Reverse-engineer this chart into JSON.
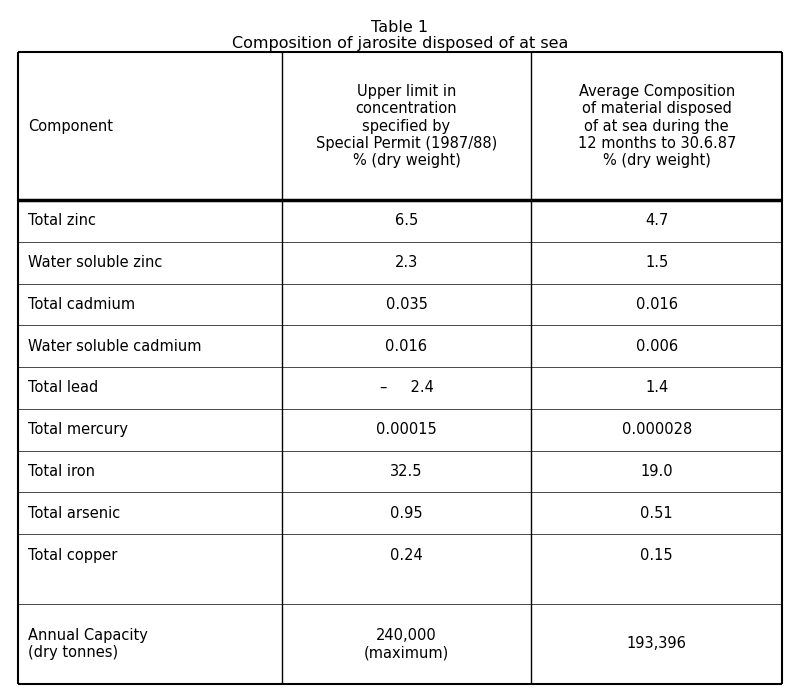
{
  "title_line1": "Table 1",
  "title_line2": "Composition of jarosite disposed of at sea",
  "col_headers": [
    "Component",
    "Upper limit in\nconcentration\nspecified by\nSpecial Permit (1987/88)\n% (dry weight)",
    "Average Composition\nof material disposed\nof at sea during the\n12 months to 30.6.87\n% (dry weight)"
  ],
  "rows": [
    [
      "Total zinc",
      "6.5",
      "4.7"
    ],
    [
      "Water soluble zinc",
      "2.3",
      "1.5"
    ],
    [
      "Total cadmium",
      "0.035",
      "0.016"
    ],
    [
      "Water soluble cadmium",
      "0.016",
      "0.006"
    ],
    [
      "Total lead",
      "–     2.4",
      "1.4"
    ],
    [
      "Total mercury",
      "0.00015",
      "0.000028"
    ],
    [
      "Total iron",
      "32.5",
      "19.0"
    ],
    [
      "Total arsenic",
      "0.95",
      "0.51"
    ],
    [
      "Total copper",
      "0.24",
      "0.15"
    ]
  ],
  "last_row_label": "Annual Capacity\n(dry tonnes)",
  "last_row_col2": "240,000\n(maximum)",
  "last_row_col3": "193,396",
  "bg_color": "#ffffff",
  "text_color": "#000000",
  "border_color": "#000000",
  "font_size": 10.5,
  "title_font_size": 11.5
}
